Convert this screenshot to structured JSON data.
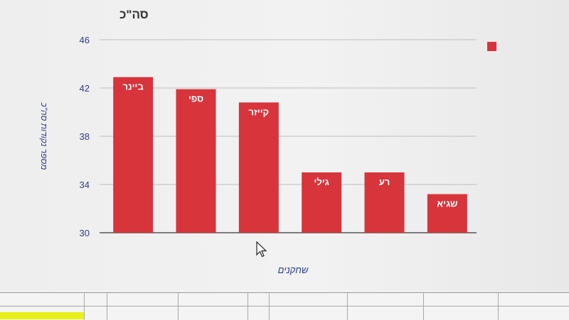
{
  "chart_data": {
    "type": "bar",
    "title": "סה\"כ",
    "xlabel": "שחקנים",
    "ylabel": "מספר נקודות סה\"כ",
    "ylim": [
      30,
      46
    ],
    "yticks": [
      30,
      34,
      38,
      42,
      46
    ],
    "grid": true,
    "legend": "top-right",
    "categories": [
      "ביינר",
      "ספי",
      "קייזר",
      "גילי",
      "רע",
      "שגיא"
    ],
    "values": [
      42.9,
      41.9,
      40.8,
      35.0,
      35.0,
      33.2
    ],
    "bar_color": "#d8343b"
  }
}
